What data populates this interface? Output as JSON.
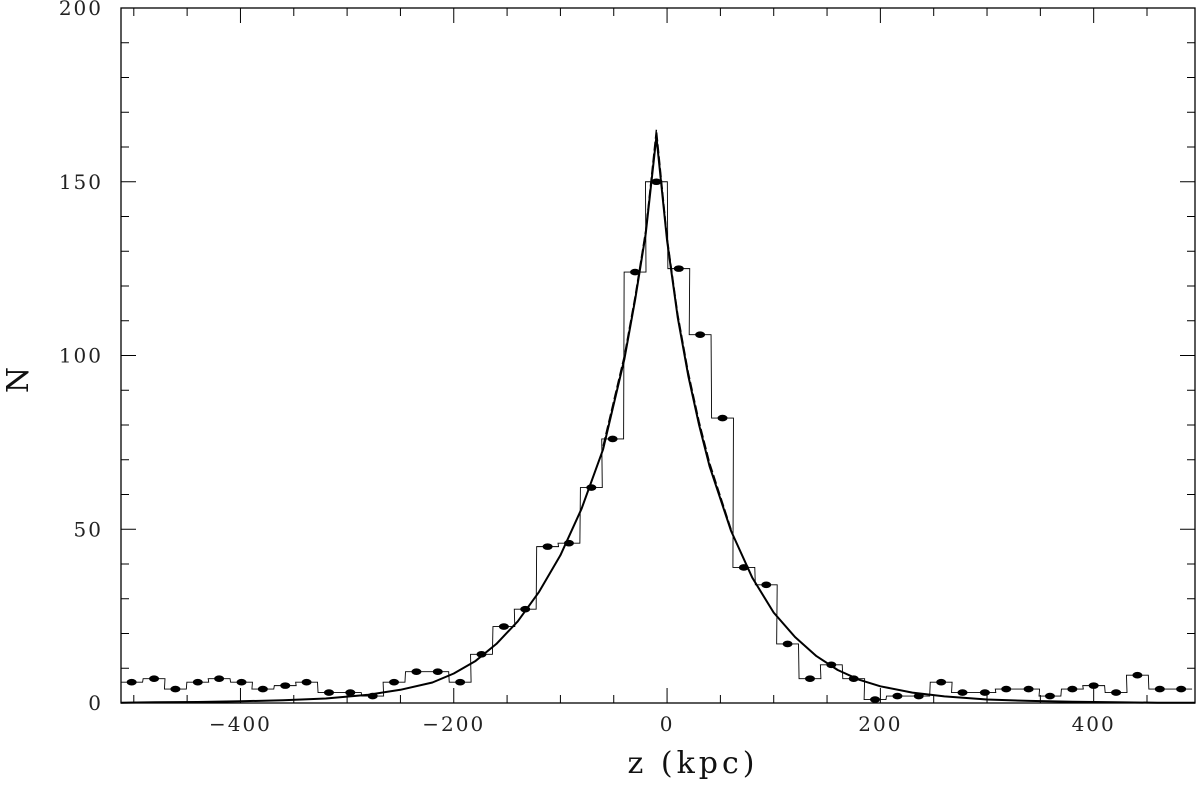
{
  "chart_data": {
    "type": "line",
    "title": "",
    "xlabel": "z (kpc)",
    "ylabel": "N",
    "xlim": [
      -512,
      495
    ],
    "ylim": [
      0,
      200
    ],
    "x_ticks": [
      -400,
      -200,
      0,
      200,
      400
    ],
    "x_tick_labels": [
      "−400",
      "−200",
      "0",
      "200",
      "400"
    ],
    "y_ticks": [
      0,
      50,
      100,
      150,
      200
    ],
    "y_tick_labels": [
      "0",
      "50",
      "100",
      "150",
      "200"
    ],
    "grid": false,
    "legend": "none",
    "bin_width": 20.5,
    "histogram": {
      "x_centers": [
        -502,
        -481,
        -461,
        -440,
        -420,
        -399,
        -379,
        -358,
        -338,
        -317,
        -297,
        -276,
        -256,
        -235,
        -215,
        -194,
        -174,
        -153,
        -133,
        -112,
        -92,
        -71,
        -51,
        -30,
        -10,
        11,
        31,
        52,
        72,
        93,
        113,
        134,
        154,
        175,
        195,
        216,
        236,
        257,
        277,
        298,
        318,
        339,
        359,
        380,
        400,
        421,
        441,
        462,
        482
      ],
      "counts": [
        6,
        7,
        4,
        6,
        7,
        6,
        4,
        5,
        6,
        3,
        3,
        2,
        6,
        9,
        9,
        6,
        14,
        22,
        27,
        45,
        46,
        62,
        76,
        124,
        150,
        125,
        106,
        82,
        39,
        34,
        17,
        7,
        11,
        7,
        1,
        2,
        2,
        6,
        3,
        3,
        4,
        4,
        2,
        4,
        5,
        3,
        8,
        4,
        4
      ]
    },
    "fit_curves": [
      {
        "style": "solid",
        "x": [
          -512,
          -480,
          -440,
          -400,
          -360,
          -320,
          -280,
          -250,
          -220,
          -200,
          -180,
          -160,
          -140,
          -120,
          -100,
          -80,
          -60,
          -40,
          -30,
          -20,
          -10,
          0,
          10,
          20,
          30,
          40,
          60,
          80,
          100,
          120,
          140,
          160,
          180,
          200,
          230,
          260,
          300,
          340,
          380,
          420,
          460,
          495
        ],
        "y": [
          0.1,
          0.2,
          0.3,
          0.5,
          0.8,
          1.3,
          2.4,
          3.8,
          5.9,
          8.5,
          12,
          17,
          23.5,
          32,
          42.5,
          56,
          73,
          99,
          116,
          135,
          163,
          133,
          111,
          94,
          80,
          68,
          49.5,
          36,
          26,
          19,
          13.5,
          9.5,
          6.7,
          4.8,
          3,
          1.9,
          1.0,
          0.6,
          0.35,
          0.2,
          0.1,
          0.05
        ]
      },
      {
        "style": "dashed",
        "x": [
          -60,
          -40,
          -30,
          -20,
          -10,
          0,
          10,
          20,
          30,
          40,
          60
        ],
        "y": [
          74,
          100,
          117,
          136,
          165,
          134,
          112,
          95,
          81,
          69,
          50
        ]
      }
    ]
  }
}
